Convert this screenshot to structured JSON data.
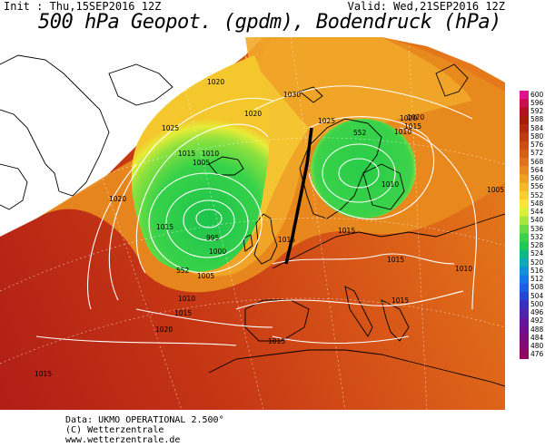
{
  "header": {
    "init_text": "Init : Thu,15SEP2016 12Z",
    "valid_text": "Valid: Wed,21SEP2016 12Z",
    "title": "500 hPa Geopot. (gpdm), Bodendruck (hPa)"
  },
  "footer": {
    "line1": "Data: UKMO OPERATIONAL 2.500°",
    "line2": "(C) Wetterzentrale",
    "line3": "www.wetterzentrale.de"
  },
  "colorbar": {
    "labels": [
      "600",
      "596",
      "592",
      "588",
      "584",
      "580",
      "576",
      "572",
      "568",
      "564",
      "560",
      "556",
      "552",
      "548",
      "544",
      "540",
      "536",
      "532",
      "528",
      "524",
      "520",
      "516",
      "512",
      "508",
      "504",
      "500",
      "496",
      "492",
      "488",
      "484",
      "480",
      "476"
    ],
    "colors": [
      "#e0148c",
      "#c8104a",
      "#b01422",
      "#a81c10",
      "#b42a0e",
      "#c03a10",
      "#cc4c12",
      "#d85e16",
      "#e2731a",
      "#ea8a1e",
      "#f0a024",
      "#f5b82a",
      "#f8cf30",
      "#fae63a",
      "#d8ef3c",
      "#a6e63e",
      "#6cdc44",
      "#3cd24a",
      "#20c858",
      "#10b888",
      "#10a8b8",
      "#1090d8",
      "#1478e8",
      "#1c5ee0",
      "#2846d0",
      "#3a30c0",
      "#4e24b0",
      "#6018a0",
      "#701090",
      "#7c0c80",
      "#860a70",
      "#8e0860"
    ]
  },
  "map": {
    "isobar_labels": [
      "1020",
      "1030",
      "1025",
      "1020",
      "1020",
      "1025",
      "1015",
      "1010",
      "1005",
      "1020",
      "995",
      "1000",
      "552",
      "1005",
      "1010",
      "1015",
      "1020",
      "1015",
      "552",
      "1020",
      "1015",
      "1010",
      "1010",
      "1005",
      "1015",
      "1015",
      "1010",
      "1015",
      "1015",
      "1015",
      "1015"
    ],
    "legend_colors": {
      "low_green": "#2ed44a",
      "mid_yellow": "#f2ec3a",
      "orange": "#f0a020",
      "deep_orange": "#e07018",
      "red": "#c84010",
      "dark_red": "#b02818"
    }
  }
}
